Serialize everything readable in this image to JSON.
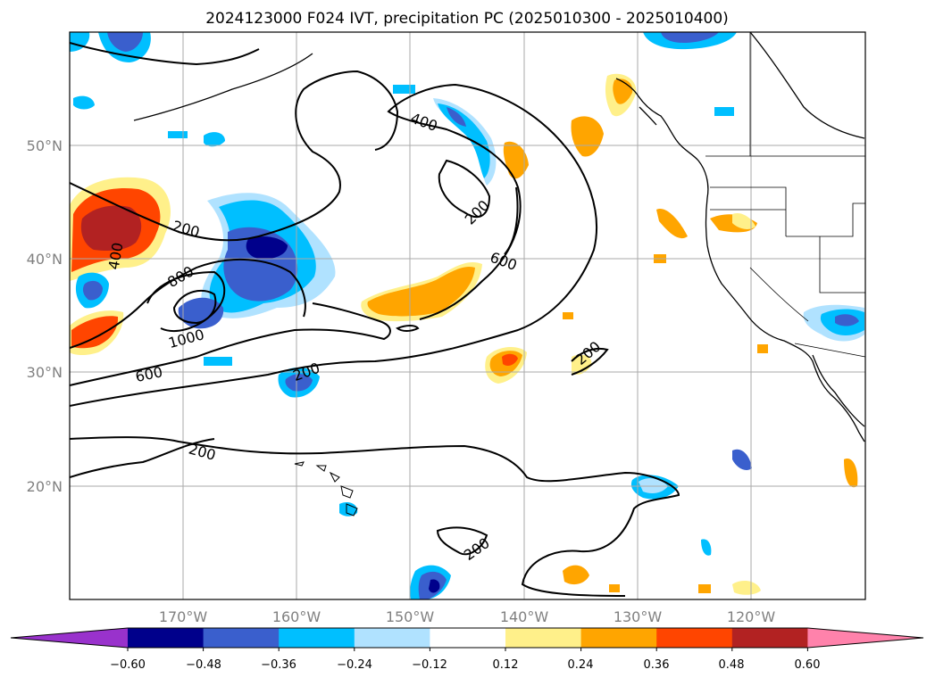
{
  "title": "2024123000 F024 IVT, precipitation PC (2025010300 - 2025010400)",
  "map": {
    "lat_labels": [
      "50°N",
      "40°N",
      "30°N",
      "20°N"
    ],
    "lon_labels": [
      "170°W",
      "160°W",
      "150°W",
      "140°W",
      "130°W",
      "120°W"
    ],
    "contour_labels": [
      "400",
      "200",
      "200",
      "400",
      "800",
      "600",
      "1000",
      "600",
      "200",
      "200",
      "200",
      "200"
    ]
  },
  "colorbar": {
    "ticks": [
      "−0.60",
      "−0.48",
      "−0.36",
      "−0.24",
      "−0.12",
      "0.12",
      "0.24",
      "0.36",
      "0.48",
      "0.60"
    ],
    "colors": [
      "#9932cc",
      "#00008b",
      "#3a5fcd",
      "#00bfff",
      "#b0e2ff",
      "#ffffff",
      "#fff08a",
      "#ffa500",
      "#ff4500",
      "#b22222",
      "#ff82ab"
    ]
  },
  "palette": {
    "neg_strong": "#3a5fcd",
    "neg_mid": "#00bfff",
    "neg_light": "#b0e2ff",
    "neg_dark": "#00008b",
    "pos_light": "#fff08a",
    "pos_mid": "#ffa500",
    "pos_strong": "#ff4500",
    "pos_dark": "#b22222"
  }
}
